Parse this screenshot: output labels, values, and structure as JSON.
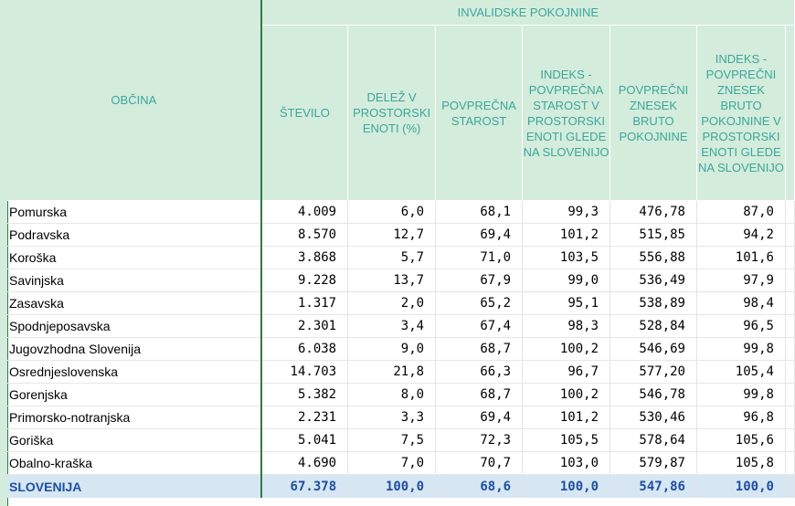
{
  "header": {
    "obcina": "OBČINA",
    "group": "INVALIDSKE POKOJNINE",
    "columns": [
      "ŠTEVILO",
      "DELEŽ V PROSTORSKI ENOTI (%)",
      "POVPREČNA STAROST",
      "INDEKS - POVPREČNA STAROST V PROSTORSKI ENOTI GLEDE NA SLOVENIJO",
      "POVPREČNI ZNESEK BRUTO POKOJNINE",
      "INDEKS - POVPREČNI ZNESEK BRUTO POKOJNINE V PROSTORSKI ENOTI GLEDE NA SLOVENIJO"
    ]
  },
  "rows": [
    {
      "name": "Pomurska",
      "values": [
        "4.009",
        "6,0",
        "68,1",
        "99,3",
        "476,78",
        "87,0"
      ]
    },
    {
      "name": "Podravska",
      "values": [
        "8.570",
        "12,7",
        "69,4",
        "101,2",
        "515,85",
        "94,2"
      ]
    },
    {
      "name": "Koroška",
      "values": [
        "3.868",
        "5,7",
        "71,0",
        "103,5",
        "556,88",
        "101,6"
      ]
    },
    {
      "name": "Savinjska",
      "values": [
        "9.228",
        "13,7",
        "67,9",
        "99,0",
        "536,49",
        "97,9"
      ]
    },
    {
      "name": "Zasavska",
      "values": [
        "1.317",
        "2,0",
        "65,2",
        "95,1",
        "538,89",
        "98,4"
      ]
    },
    {
      "name": "Spodnjeposavska",
      "values": [
        "2.301",
        "3,4",
        "67,4",
        "98,3",
        "528,84",
        "96,5"
      ]
    },
    {
      "name": "Jugovzhodna Slovenija",
      "values": [
        "6.038",
        "9,0",
        "68,7",
        "100,2",
        "546,69",
        "99,8"
      ]
    },
    {
      "name": "Osrednjeslovenska",
      "values": [
        "14.703",
        "21,8",
        "66,3",
        "96,7",
        "577,20",
        "105,4"
      ]
    },
    {
      "name": "Gorenjska",
      "values": [
        "5.382",
        "8,0",
        "68,7",
        "100,2",
        "546,78",
        "99,8"
      ]
    },
    {
      "name": "Primorsko-notranjska",
      "values": [
        "2.231",
        "3,3",
        "69,4",
        "101,2",
        "530,46",
        "96,8"
      ]
    },
    {
      "name": "Goriška",
      "values": [
        "5.041",
        "7,5",
        "72,3",
        "105,5",
        "578,64",
        "105,6"
      ]
    },
    {
      "name": "Obalno-kraška",
      "values": [
        "4.690",
        "7,0",
        "70,7",
        "103,0",
        "579,87",
        "105,8"
      ]
    }
  ],
  "total": {
    "name": "SLOVENIJA",
    "values": [
      "67.378",
      "100,0",
      "68,6",
      "100,0",
      "547,86",
      "100,0"
    ]
  },
  "colors": {
    "header_bg": "#d4ecdc",
    "header_text": "#3aa79a",
    "total_bg": "#d6e6f2",
    "total_text": "#1f4fa0",
    "frozen_border": "#2f7a47"
  }
}
